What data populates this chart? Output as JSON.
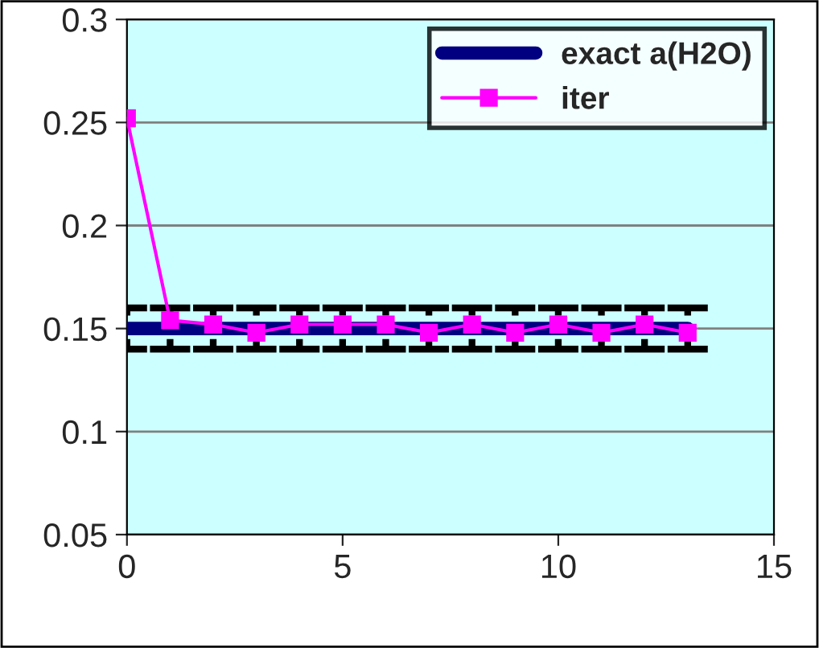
{
  "chart_data": {
    "type": "line",
    "x": [
      0,
      1,
      2,
      3,
      4,
      5,
      6,
      7,
      8,
      9,
      10,
      11,
      12,
      13
    ],
    "series": [
      {
        "name": "exact a(H2O)",
        "color": "#000080",
        "values": [
          0.15,
          0.15,
          0.15,
          0.15,
          0.15,
          0.15,
          0.15,
          0.15,
          0.15,
          0.15,
          0.15,
          0.15,
          0.15,
          0.15
        ],
        "errors": [
          0.01,
          0.01,
          0.01,
          0.01,
          0.01,
          0.01,
          0.01,
          0.01,
          0.01,
          0.01,
          0.01,
          0.01,
          0.01,
          0.01
        ],
        "marker": "none"
      },
      {
        "name": "iter",
        "color": "#ff00ff",
        "values": [
          0.252,
          0.154,
          0.152,
          0.148,
          0.152,
          0.152,
          0.152,
          0.148,
          0.152,
          0.148,
          0.152,
          0.148,
          0.152,
          0.148
        ],
        "marker": "square"
      }
    ],
    "xlim": [
      0,
      15
    ],
    "xticks": [
      0,
      5,
      10,
      15
    ],
    "ylim": [
      0.05,
      0.3
    ],
    "yticks": [
      0.05,
      0.1,
      0.15,
      0.2,
      0.25,
      0.3
    ],
    "grid": "y",
    "legend": "top right"
  }
}
